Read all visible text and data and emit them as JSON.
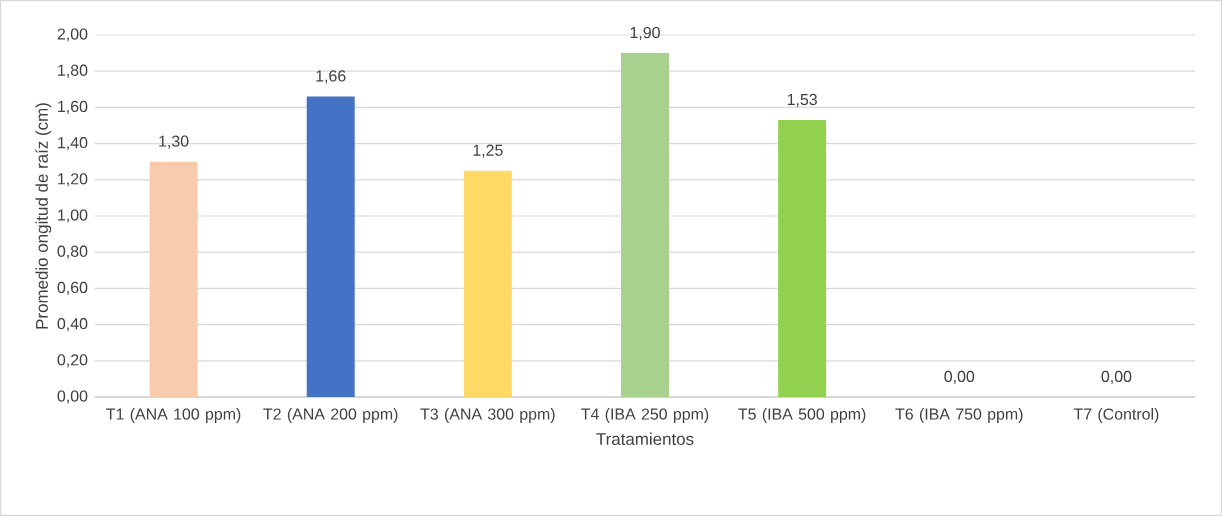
{
  "chart_data": {
    "type": "bar",
    "xlabel": "Tratamientos",
    "ylabel": "Promedio ongitud de raíz (cm)",
    "categories": [
      "T1 (ANA 100 ppm)",
      "T2 (ANA 200 ppm)",
      "T3 (ANA 300 ppm)",
      "T4 (IBA 250 ppm)",
      "T5  (IBA 500 ppm)",
      "T6  (IBA 750 ppm)",
      "T7 (Control)"
    ],
    "values": [
      1.3,
      1.66,
      1.25,
      1.9,
      1.53,
      0.0,
      0.0
    ],
    "colors": [
      "#f8cbad",
      "#4472c4",
      "#ffd966",
      "#a9d18e",
      "#92d050",
      "#70ad47",
      "#a5a5a5"
    ],
    "value_labels": [
      "1,30",
      "1,66",
      "1,25",
      "1,90",
      "1,53",
      "0,00",
      "0,00"
    ],
    "ylim": [
      0,
      2
    ],
    "yticks": [
      {
        "value": 0,
        "label": "0,00"
      },
      {
        "value": 0.2,
        "label": "0,20"
      },
      {
        "value": 0.4,
        "label": "0,40"
      },
      {
        "value": 0.6,
        "label": "0,60"
      },
      {
        "value": 0.8,
        "label": "0,80"
      },
      {
        "value": 1.0,
        "label": "1,00"
      },
      {
        "value": 1.2,
        "label": "1,20"
      },
      {
        "value": 1.4,
        "label": "1,40"
      },
      {
        "value": 1.6,
        "label": "1,60"
      },
      {
        "value": 1.8,
        "label": "1,80"
      },
      {
        "value": 2.0,
        "label": "2,00"
      }
    ],
    "grid": "y"
  }
}
